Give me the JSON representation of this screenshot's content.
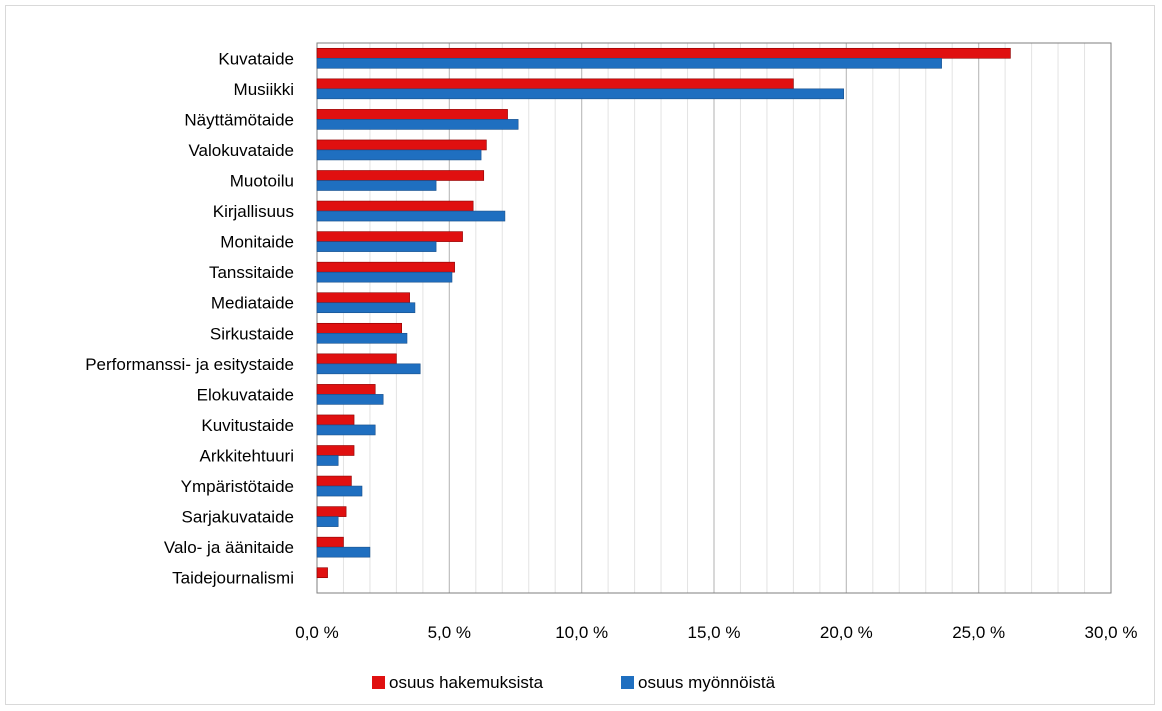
{
  "chart_data": {
    "type": "bar",
    "orientation": "horizontal",
    "categories": [
      "Kuvataide",
      "Musiikki",
      "Näyttämötaide",
      "Valokuvataide",
      "Muotoilu",
      "Kirjallisuus",
      "Monitaide",
      "Tanssitaide",
      "Mediataide",
      "Sirkustaide",
      "Performanssi- ja esitystaide",
      "Elokuvataide",
      "Kuvitustaide",
      "Arkkitehtuuri",
      "Ympäristötaide",
      "Sarjakuvataide",
      "Valo- ja äänitaide",
      "Taidejournalismi"
    ],
    "series": [
      {
        "name": "osuus hakemuksista",
        "color": "#e01010",
        "values": [
          26.2,
          18.0,
          7.2,
          6.4,
          6.3,
          5.9,
          5.5,
          5.2,
          3.5,
          3.2,
          3.0,
          2.2,
          1.4,
          1.4,
          1.3,
          1.1,
          1.0,
          0.4
        ]
      },
      {
        "name": "osuus myönnöistä",
        "color": "#1f6fc0",
        "values": [
          23.6,
          19.9,
          7.6,
          6.2,
          4.5,
          7.1,
          4.5,
          5.1,
          3.7,
          3.4,
          3.9,
          2.5,
          2.2,
          0.8,
          1.7,
          0.8,
          2.0,
          0.0
        ]
      }
    ],
    "x_ticks": [
      "0,0 %",
      "5,0 %",
      "10,0 %",
      "15,0 %",
      "20,0 %",
      "25,0 %",
      "30,0 %"
    ],
    "xlim": [
      0,
      30
    ],
    "grid": true,
    "legend_position": "bottom"
  }
}
